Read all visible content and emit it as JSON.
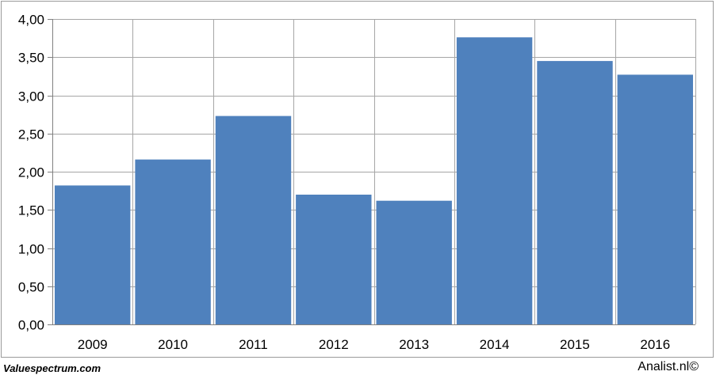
{
  "chart_data": {
    "type": "bar",
    "categories": [
      "2009",
      "2010",
      "2011",
      "2012",
      "2013",
      "2014",
      "2015",
      "2016"
    ],
    "values": [
      1.82,
      2.16,
      2.73,
      1.7,
      1.62,
      3.76,
      3.45,
      3.27
    ],
    "title": "",
    "xlabel": "",
    "ylabel": "",
    "ylim": [
      0,
      4
    ],
    "yticks": [
      "0,00",
      "0,50",
      "1,00",
      "1,50",
      "2,00",
      "2,50",
      "3,00",
      "3,50",
      "4,00"
    ],
    "grid": true,
    "bar_color": "#4f81bd",
    "grid_color": "#a6a6a6"
  },
  "footer": {
    "source_left": "Valuespectrum.com",
    "source_right": "Analist.nl©"
  }
}
